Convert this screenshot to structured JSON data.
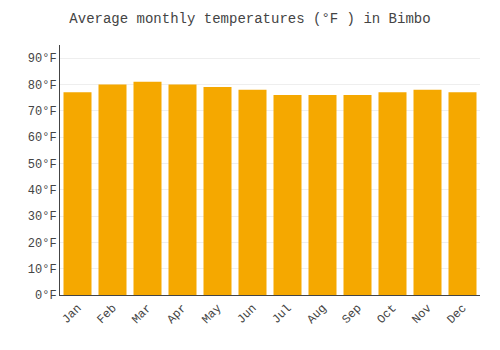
{
  "chart_data": {
    "type": "bar",
    "title": "Average monthly temperatures (°F ) in Bimbo",
    "categories": [
      "Jan",
      "Feb",
      "Mar",
      "Apr",
      "May",
      "Jun",
      "Jul",
      "Aug",
      "Sep",
      "Oct",
      "Nov",
      "Dec"
    ],
    "values": [
      77,
      80,
      81,
      80,
      79,
      78,
      76,
      76,
      76,
      77,
      78,
      77
    ],
    "color": "#F5A800",
    "ylim": [
      0,
      95
    ],
    "yticks": [
      {
        "value": 0,
        "label": "0°F"
      },
      {
        "value": 10,
        "label": "10°F"
      },
      {
        "value": 20,
        "label": "20°F"
      },
      {
        "value": 30,
        "label": "30°F"
      },
      {
        "value": 40,
        "label": "40°F"
      },
      {
        "value": 50,
        "label": "50°F"
      },
      {
        "value": 60,
        "label": "60°F"
      },
      {
        "value": 70,
        "label": "70°F"
      },
      {
        "value": 80,
        "label": "80°F"
      },
      {
        "value": 90,
        "label": "90°F"
      }
    ],
    "grid": true
  }
}
